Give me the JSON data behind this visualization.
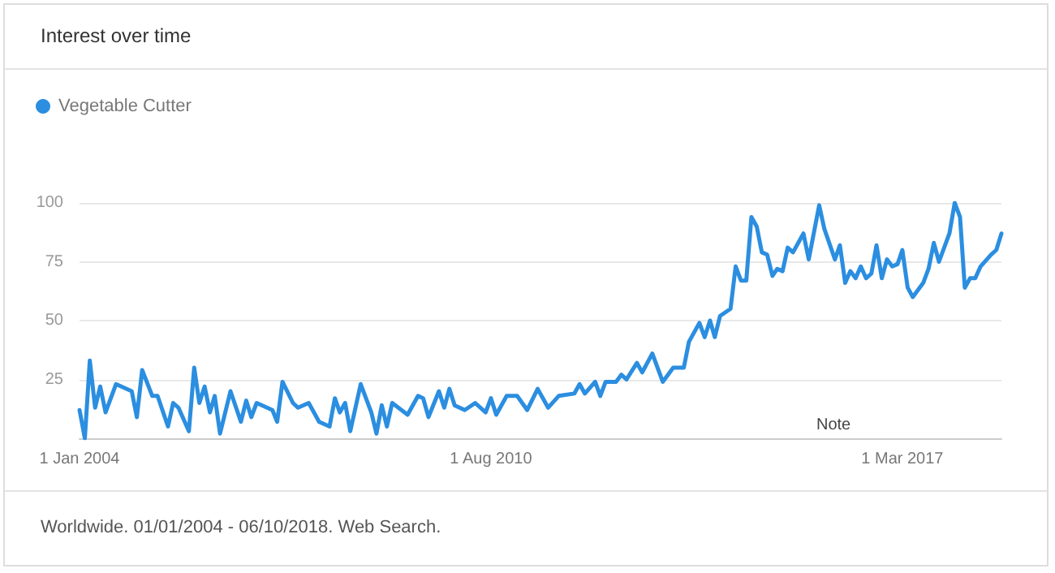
{
  "chart_data": {
    "type": "line",
    "title": "Interest over time",
    "annotations": [
      "Note",
      "Worldwide. 01/01/2004 - 06/10/2018. Web Search."
    ],
    "x": [
      "2004-01",
      "2004-02",
      "2004-03",
      "2004-04",
      "2004-05",
      "2004-06",
      "2004-08",
      "2004-11",
      "2004-12",
      "2005-01",
      "2005-03",
      "2005-04",
      "2005-06",
      "2005-07",
      "2005-08",
      "2005-10",
      "2005-11",
      "2005-12",
      "2006-01",
      "2006-02",
      "2006-03",
      "2006-04",
      "2006-06",
      "2006-08",
      "2006-09",
      "2006-10",
      "2006-11",
      "2007-02",
      "2007-03",
      "2007-04",
      "2007-06",
      "2007-07",
      "2007-09",
      "2007-11",
      "2008-01",
      "2008-02",
      "2008-03",
      "2008-04",
      "2008-05",
      "2008-07",
      "2008-09",
      "2008-10",
      "2008-11",
      "2008-12",
      "2009-01",
      "2009-04",
      "2009-06",
      "2009-07",
      "2009-08",
      "2009-10",
      "2009-11",
      "2009-12",
      "2010-01",
      "2010-03",
      "2010-05",
      "2010-07",
      "2010-08",
      "2010-09",
      "2010-11",
      "2011-01",
      "2011-03",
      "2011-05",
      "2011-07",
      "2011-09",
      "2011-12",
      "2012-01",
      "2012-02",
      "2012-04",
      "2012-05",
      "2012-06",
      "2012-08",
      "2012-09",
      "2012-10",
      "2012-12",
      "2013-01",
      "2013-03",
      "2013-05",
      "2013-07",
      "2013-09",
      "2013-10",
      "2013-12",
      "2014-01",
      "2014-02",
      "2014-03",
      "2014-04",
      "2014-06",
      "2014-07",
      "2014-08",
      "2014-09",
      "2014-10",
      "2014-11",
      "2014-12",
      "2015-01",
      "2015-02",
      "2015-03",
      "2015-04",
      "2015-05",
      "2015-06",
      "2015-08",
      "2015-09",
      "2015-11",
      "2015-12",
      "2016-02",
      "2016-03",
      "2016-04",
      "2016-05",
      "2016-06",
      "2016-07",
      "2016-08",
      "2016-09",
      "2016-10",
      "2016-11",
      "2016-12",
      "2017-01",
      "2017-02",
      "2017-03",
      "2017-04",
      "2017-05",
      "2017-07",
      "2017-08",
      "2017-09",
      "2017-10",
      "2017-12",
      "2018-01",
      "2018-02",
      "2018-03",
      "2018-04",
      "2018-05",
      "2018-06",
      "2018-08",
      "2018-09",
      "2018-10"
    ],
    "series": [
      {
        "name": "Vegetable Cutter",
        "color": "#2b8ee0",
        "values": [
          12,
          0,
          33,
          13,
          22,
          11,
          23,
          20,
          9,
          29,
          18,
          18,
          5,
          15,
          13,
          3,
          30,
          15,
          22,
          11,
          18,
          2,
          20,
          7,
          16,
          9,
          15,
          12,
          7,
          24,
          15,
          13,
          15,
          7,
          5,
          17,
          11,
          15,
          3,
          23,
          11,
          2,
          14,
          5,
          15,
          10,
          18,
          17,
          9,
          20,
          13,
          21,
          14,
          12,
          15,
          11,
          17,
          10,
          18,
          18,
          12,
          21,
          13,
          18,
          19,
          23,
          19,
          24,
          18,
          24,
          24,
          27,
          25,
          32,
          28,
          36,
          24,
          30,
          30,
          41,
          49,
          43,
          50,
          43,
          52,
          55,
          73,
          67,
          67,
          94,
          90,
          79,
          78,
          69,
          72,
          71,
          81,
          79,
          87,
          76,
          99,
          89,
          76,
          82,
          66,
          71,
          68,
          73,
          68,
          70,
          82,
          68,
          76,
          73,
          74,
          80,
          64,
          60,
          66,
          72,
          83,
          75,
          87,
          100,
          94,
          64,
          68,
          68,
          73,
          78,
          80,
          87
        ]
      }
    ],
    "xlim": [
      "2004-01",
      "2018-10"
    ],
    "xticks": [
      {
        "value": "2004-01-01",
        "label": "1 Jan 2004"
      },
      {
        "value": "2010-08-01",
        "label": "1 Aug 2010"
      },
      {
        "value": "2017-03-01",
        "label": "1 Mar 2017"
      }
    ],
    "ylim": [
      0,
      100
    ],
    "yticks": [
      25,
      50,
      75,
      100
    ],
    "grid": "y",
    "legend": "top left",
    "marker": "none",
    "line_style": "solid"
  }
}
